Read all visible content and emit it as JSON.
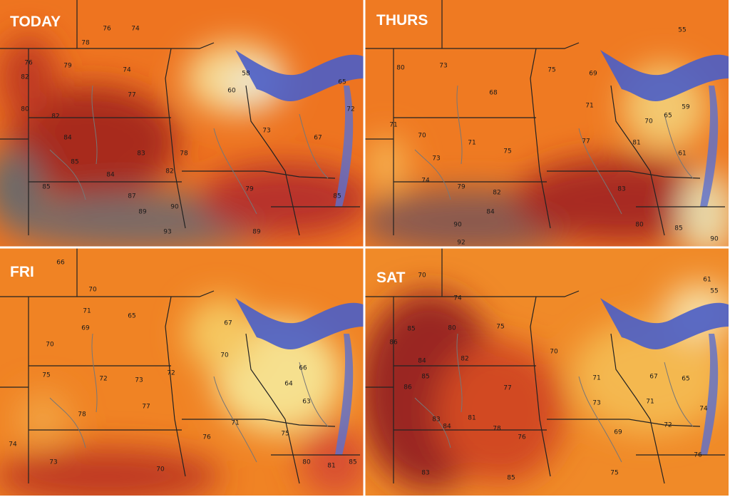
{
  "panels": [
    {
      "title": "TODAY",
      "labels": [
        76,
        74,
        78,
        76,
        82,
        79,
        74,
        77,
        80,
        82,
        84,
        85,
        84,
        83,
        85,
        87,
        89,
        93,
        90,
        78,
        82,
        60,
        58,
        73,
        79,
        89,
        85,
        72,
        67,
        65
      ]
    },
    {
      "title": "THURS",
      "labels": [
        80,
        73,
        68,
        70,
        71,
        73,
        75,
        71,
        82,
        84,
        90,
        92,
        79,
        74,
        75,
        69,
        71,
        77,
        83,
        80,
        85,
        81,
        70,
        61,
        59,
        90,
        55,
        65
      ]
    },
    {
      "title": "FRI",
      "labels": [
        66,
        70,
        65,
        71,
        69,
        70,
        75,
        72,
        73,
        77,
        78,
        74,
        73,
        70,
        76,
        71,
        64,
        63,
        67,
        66,
        75,
        70,
        80,
        85,
        81,
        72
      ]
    },
    {
      "title": "SAT",
      "labels": [
        70,
        74,
        80,
        75,
        85,
        86,
        84,
        82,
        85,
        86,
        77,
        83,
        84,
        81,
        78,
        76,
        83,
        85,
        70,
        71,
        67,
        65,
        71,
        73,
        69,
        72,
        75,
        76,
        74,
        61,
        55
      ]
    }
  ]
}
